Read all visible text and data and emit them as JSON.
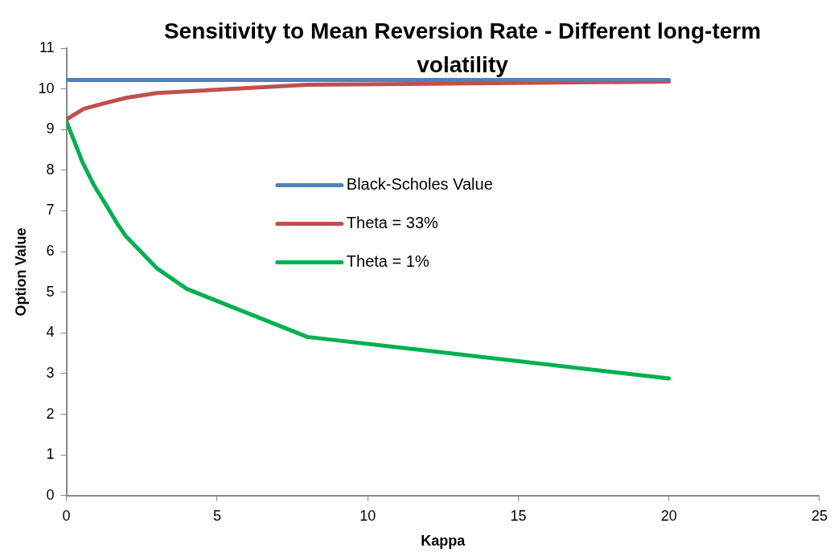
{
  "chart_data": {
    "type": "line",
    "title": "Sensitivity to Mean Reversion Rate - Different long-term volatility",
    "xlabel": "Kappa",
    "ylabel": "Option Value",
    "xlim": [
      0,
      25
    ],
    "xticks": [
      0,
      5,
      10,
      15,
      20,
      25
    ],
    "ylim": [
      0,
      11
    ],
    "yticks": [
      0,
      1,
      2,
      3,
      4,
      5,
      6,
      7,
      8,
      9,
      10,
      11
    ],
    "grid": false,
    "legend": "center",
    "marker": "none",
    "line_style": "solid",
    "series": [
      {
        "name": "Black-Scholes Value",
        "color": "#4f81bd",
        "x": [
          0,
          20
        ],
        "values": [
          10.22,
          10.22
        ]
      },
      {
        "name": "Theta = 33%",
        "color": "#c0504d",
        "x": [
          0,
          0.58,
          1.17,
          1.98,
          3,
          8,
          20
        ],
        "values": [
          9.25,
          9.51,
          9.63,
          9.78,
          9.9,
          10.1,
          10.18
        ]
      },
      {
        "name": "Theta = 1%",
        "color": "#00b050",
        "x": [
          0,
          0.39,
          0.53,
          0.9,
          1.03,
          1.42,
          1.7,
          1.98,
          3,
          4,
          8,
          20
        ],
        "values": [
          9.2,
          8.47,
          8.2,
          7.65,
          7.49,
          7.02,
          6.67,
          6.37,
          5.59,
          5.08,
          3.9,
          2.88
        ]
      }
    ]
  }
}
